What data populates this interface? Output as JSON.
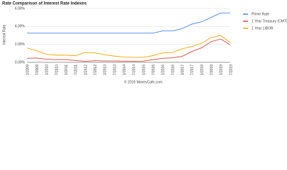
{
  "chart_data": {
    "type": "line",
    "title": "Rate Comparison of Interest Rate Indexes",
    "y_label": "Interest Rate",
    "footer": "© 2019 MoneyCafe.com",
    "categories": [
      "1/2009",
      "7/2009",
      "1/2010",
      "7/2010",
      "1/2011",
      "7/2011",
      "1/2012",
      "7/2012",
      "1/2013",
      "7/2013",
      "1/2014",
      "7/2014",
      "1/2015",
      "7/2015",
      "1/2016",
      "7/2016",
      "1/2017",
      "7/2017",
      "1/2018",
      "7/2018",
      "1/2019",
      "7/2019"
    ],
    "series": [
      {
        "name": "Prime Rate",
        "color": "#4285f4",
        "values": [
          3.25,
          3.25,
          3.25,
          3.25,
          3.25,
          3.25,
          3.25,
          3.25,
          3.25,
          3.25,
          3.25,
          3.25,
          3.25,
          3.25,
          3.5,
          3.5,
          3.75,
          4.25,
          4.5,
          5.0,
          5.5,
          5.5
        ]
      },
      {
        "name": "1 Year Treasury (CMT)",
        "color": "#db4437",
        "values": [
          0.45,
          0.48,
          0.35,
          0.3,
          0.3,
          0.2,
          0.12,
          0.18,
          0.15,
          0.15,
          0.13,
          0.12,
          0.13,
          0.3,
          0.45,
          0.5,
          0.65,
          1.2,
          1.6,
          2.3,
          2.6,
          1.95
        ]
      },
      {
        "name": "1 Year LIBOR",
        "color": "#f4a400",
        "values": [
          1.6,
          1.3,
          0.9,
          0.8,
          0.8,
          0.75,
          1.1,
          1.05,
          0.85,
          0.7,
          0.6,
          0.55,
          0.55,
          0.75,
          1.05,
          1.1,
          1.5,
          1.75,
          2.1,
          2.75,
          3.0,
          2.2
        ]
      }
    ],
    "ylim": [
      0,
      6
    ],
    "yticks": [
      {
        "value": 0,
        "label": "0.00%"
      },
      {
        "value": 2,
        "label": "2.00%"
      },
      {
        "value": 4,
        "label": "4.00%"
      },
      {
        "value": 6,
        "label": "6.00%"
      }
    ],
    "grid": true,
    "legend": "right"
  }
}
